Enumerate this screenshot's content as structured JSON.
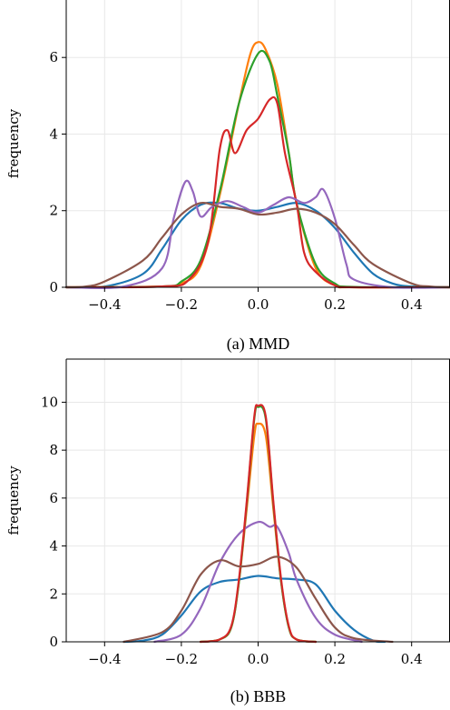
{
  "chart_data": [
    {
      "type": "line",
      "caption": "(a) MMD",
      "xlabel": "",
      "ylabel": "frequency",
      "xlim": [
        -0.5,
        0.5
      ],
      "ylim": [
        0,
        7.5
      ],
      "xticks": [
        -0.4,
        -0.2,
        0.0,
        0.2,
        0.4
      ],
      "xtick_labels": [
        "−0.4",
        "−0.2",
        "0.0",
        "0.2",
        "0.4"
      ],
      "yticks": [
        0,
        2,
        4,
        6
      ],
      "ytick_labels": [
        "0",
        "2",
        "4",
        "6"
      ],
      "grid": true,
      "series": [
        {
          "color": "#1f77b4",
          "x": [
            -0.5,
            -0.4,
            -0.3,
            -0.25,
            -0.2,
            -0.15,
            -0.1,
            -0.05,
            0.0,
            0.05,
            0.1,
            0.15,
            0.2,
            0.25,
            0.3,
            0.35,
            0.4,
            0.5
          ],
          "y": [
            0,
            0.02,
            0.35,
            1.0,
            1.75,
            2.15,
            2.2,
            2.05,
            2.0,
            2.1,
            2.2,
            2.0,
            1.55,
            0.9,
            0.35,
            0.1,
            0.02,
            0
          ]
        },
        {
          "color": "#ff7f0e",
          "x": [
            -0.5,
            -0.25,
            -0.2,
            -0.15,
            -0.1,
            -0.05,
            -0.02,
            0.0,
            0.02,
            0.05,
            0.08,
            0.1,
            0.15,
            0.2,
            0.25,
            0.5
          ],
          "y": [
            0,
            0.02,
            0.1,
            0.55,
            2.4,
            4.8,
            6.1,
            6.4,
            6.2,
            5.3,
            3.5,
            2.2,
            0.5,
            0.05,
            0.0,
            0
          ]
        },
        {
          "color": "#2ca02c",
          "x": [
            -0.5,
            -0.25,
            -0.2,
            -0.15,
            -0.1,
            -0.05,
            0.0,
            0.03,
            0.05,
            0.08,
            0.1,
            0.15,
            0.2,
            0.25,
            0.5
          ],
          "y": [
            0,
            0.02,
            0.15,
            0.7,
            2.5,
            4.8,
            6.1,
            5.9,
            5.0,
            3.5,
            2.2,
            0.6,
            0.1,
            0.01,
            0
          ]
        },
        {
          "color": "#d62728",
          "x": [
            -0.5,
            -0.25,
            -0.18,
            -0.13,
            -0.1,
            -0.08,
            -0.06,
            -0.03,
            0.0,
            0.03,
            0.05,
            0.07,
            0.1,
            0.12,
            0.15,
            0.2,
            0.25,
            0.5
          ],
          "y": [
            0,
            0.02,
            0.2,
            1.2,
            3.6,
            4.1,
            3.5,
            4.1,
            4.4,
            4.9,
            4.8,
            3.5,
            2.2,
            0.9,
            0.4,
            0.05,
            0.0,
            0
          ]
        },
        {
          "color": "#9467bd",
          "x": [
            -0.5,
            -0.35,
            -0.25,
            -0.22,
            -0.19,
            -0.17,
            -0.15,
            -0.12,
            -0.08,
            -0.04,
            0.0,
            0.04,
            0.08,
            0.12,
            0.15,
            0.17,
            0.2,
            0.23,
            0.25,
            0.35,
            0.5
          ],
          "y": [
            0,
            0.02,
            0.5,
            1.8,
            2.75,
            2.5,
            1.85,
            2.1,
            2.25,
            2.1,
            1.95,
            2.15,
            2.35,
            2.2,
            2.35,
            2.55,
            1.8,
            0.6,
            0.2,
            0.0,
            0
          ]
        },
        {
          "color": "#8c564b",
          "x": [
            -0.5,
            -0.45,
            -0.4,
            -0.3,
            -0.25,
            -0.2,
            -0.15,
            -0.1,
            -0.05,
            0.0,
            0.05,
            0.1,
            0.15,
            0.2,
            0.25,
            0.3,
            0.4,
            0.45,
            0.5
          ],
          "y": [
            0,
            0.02,
            0.15,
            0.7,
            1.3,
            1.9,
            2.2,
            2.1,
            2.05,
            1.9,
            1.95,
            2.05,
            1.95,
            1.65,
            1.1,
            0.6,
            0.1,
            0.02,
            0
          ]
        }
      ]
    },
    {
      "type": "line",
      "caption": "(b) BBB",
      "xlabel": "",
      "ylabel": "frequency",
      "xlim": [
        -0.5,
        0.5
      ],
      "ylim": [
        0,
        11.8
      ],
      "xticks": [
        -0.4,
        -0.2,
        0.0,
        0.2,
        0.4
      ],
      "xtick_labels": [
        "−0.4",
        "−0.2",
        "0.0",
        "0.2",
        "0.4"
      ],
      "yticks": [
        0,
        2,
        4,
        6,
        8,
        10
      ],
      "ytick_labels": [
        "0",
        "2",
        "4",
        "6",
        "8",
        "10"
      ],
      "grid": true,
      "series": [
        {
          "color": "#1f77b4",
          "x": [
            -0.35,
            -0.3,
            -0.25,
            -0.2,
            -0.15,
            -0.1,
            -0.05,
            0.0,
            0.05,
            0.1,
            0.15,
            0.2,
            0.25,
            0.3,
            0.33
          ],
          "y": [
            0,
            0.05,
            0.3,
            1.1,
            2.1,
            2.5,
            2.6,
            2.75,
            2.65,
            2.6,
            2.4,
            1.3,
            0.5,
            0.05,
            0
          ]
        },
        {
          "color": "#ff7f0e",
          "x": [
            -0.15,
            -0.1,
            -0.07,
            -0.05,
            -0.03,
            -0.01,
            0.0,
            0.02,
            0.04,
            0.06,
            0.08,
            0.1,
            0.15
          ],
          "y": [
            0,
            0.1,
            0.6,
            2.5,
            5.5,
            8.6,
            9.1,
            8.6,
            5.5,
            2.5,
            0.6,
            0.1,
            0
          ]
        },
        {
          "color": "#2ca02c",
          "x": [
            -0.15,
            -0.1,
            -0.07,
            -0.05,
            -0.03,
            -0.01,
            0.0,
            0.02,
            0.04,
            0.06,
            0.08,
            0.1,
            0.15
          ],
          "y": [
            0,
            0.1,
            0.6,
            2.5,
            5.7,
            9.3,
            9.8,
            9.3,
            5.7,
            2.5,
            0.6,
            0.1,
            0
          ]
        },
        {
          "color": "#9467bd",
          "x": [
            -0.27,
            -0.2,
            -0.15,
            -0.1,
            -0.05,
            0.0,
            0.03,
            0.05,
            0.08,
            0.1,
            0.15,
            0.2,
            0.27
          ],
          "y": [
            0,
            0.3,
            1.4,
            3.3,
            4.5,
            5.0,
            4.8,
            4.8,
            3.7,
            2.6,
            1.0,
            0.3,
            0
          ]
        },
        {
          "color": "#d62728",
          "x": [
            -0.15,
            -0.1,
            -0.07,
            -0.05,
            -0.03,
            -0.01,
            0.0,
            0.02,
            0.04,
            0.06,
            0.08,
            0.1,
            0.15
          ],
          "y": [
            0,
            0.1,
            0.65,
            2.6,
            5.8,
            9.4,
            9.85,
            9.4,
            5.8,
            2.6,
            0.65,
            0.1,
            0
          ]
        },
        {
          "color": "#8c564b",
          "x": [
            -0.35,
            -0.25,
            -0.2,
            -0.15,
            -0.1,
            -0.05,
            0.0,
            0.05,
            0.1,
            0.15,
            0.2,
            0.25,
            0.35
          ],
          "y": [
            0,
            0.4,
            1.3,
            2.8,
            3.4,
            3.15,
            3.25,
            3.55,
            3.1,
            1.8,
            0.6,
            0.15,
            0
          ]
        }
      ]
    }
  ]
}
